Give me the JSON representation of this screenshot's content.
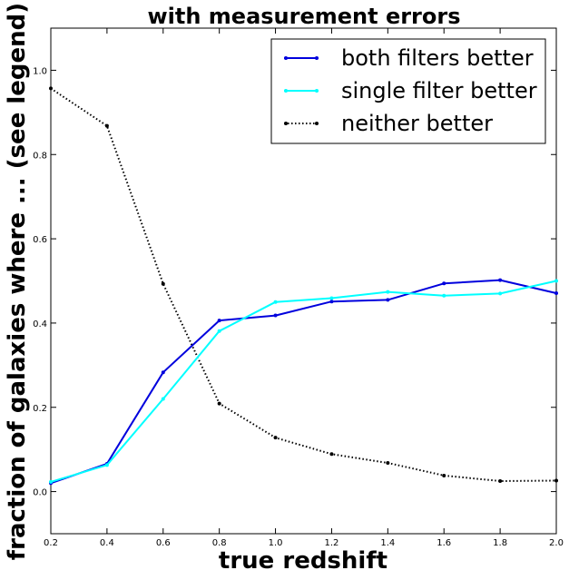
{
  "chart_data": {
    "type": "line",
    "title": "with measurement errors",
    "xlabel": "true redshift",
    "ylabel": "fraction of galaxies where ... (see legend)",
    "xlim": [
      0.2,
      2.0
    ],
    "ylim": [
      -0.1,
      1.1
    ],
    "xticks": [
      "0.2",
      "0.4",
      "0.6",
      "0.8",
      "1.0",
      "1.2",
      "1.4",
      "1.6",
      "1.8",
      "2.0"
    ],
    "yticks": [
      "0.0",
      "0.2",
      "0.4",
      "0.6",
      "0.8",
      "1.0"
    ],
    "grid": false,
    "legend_position": "top-right",
    "series": [
      {
        "name": "both filters better",
        "color": "#0000dd",
        "style": "solid",
        "marker": "dot",
        "x": [
          0.2,
          0.4,
          0.6,
          0.8,
          1.0,
          1.2,
          1.4,
          1.6,
          1.8,
          2.0
        ],
        "values": [
          0.02,
          0.066,
          0.283,
          0.406,
          0.418,
          0.451,
          0.455,
          0.494,
          0.502,
          0.471
        ]
      },
      {
        "name": "single filter better",
        "color": "#00ffff",
        "style": "solid",
        "marker": "dot",
        "x": [
          0.2,
          0.4,
          0.6,
          0.8,
          1.0,
          1.2,
          1.4,
          1.6,
          1.8,
          2.0
        ],
        "values": [
          0.023,
          0.063,
          0.22,
          0.381,
          0.45,
          0.459,
          0.474,
          0.465,
          0.47,
          0.5
        ]
      },
      {
        "name": "neither better",
        "color": "#000000",
        "style": "dotted",
        "marker": "dot",
        "x": [
          0.2,
          0.4,
          0.6,
          0.8,
          1.0,
          1.2,
          1.4,
          1.6,
          1.8,
          2.0
        ],
        "values": [
          0.957,
          0.868,
          0.493,
          0.209,
          0.128,
          0.089,
          0.068,
          0.038,
          0.025,
          0.026
        ]
      }
    ]
  }
}
